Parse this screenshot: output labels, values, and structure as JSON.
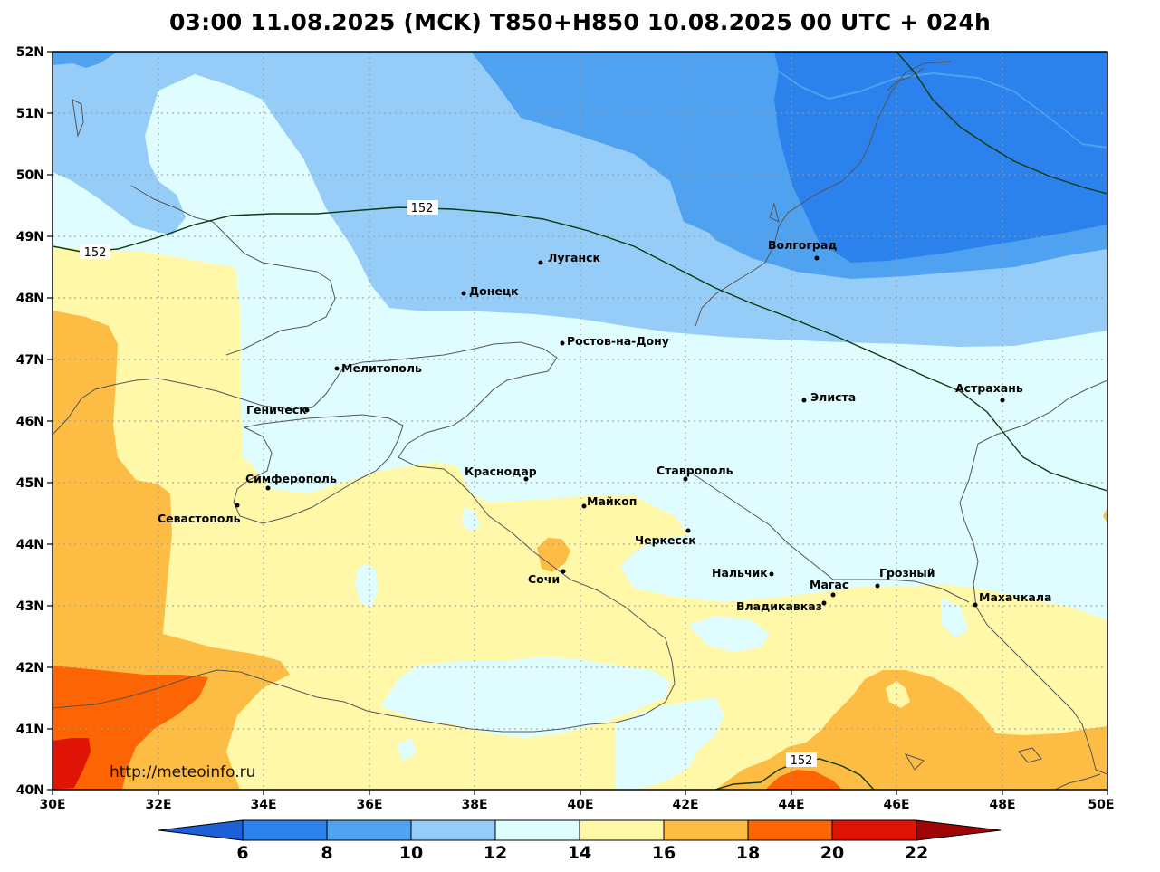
{
  "title": "03:00 11.08.2025 (MCK) T850+H850 10.08.2025 00 UTC + 024h",
  "watermark": "http://meteoinfo.ru",
  "axes": {
    "lat_labels": [
      "52N",
      "51N",
      "50N",
      "49N",
      "48N",
      "47N",
      "46N",
      "45N",
      "44N",
      "43N",
      "42N",
      "41N",
      "40N"
    ],
    "lon_labels": [
      "30E",
      "32E",
      "34E",
      "36E",
      "38E",
      "40E",
      "42E",
      "44E",
      "46E",
      "48E",
      "50E"
    ]
  },
  "contour_labels": [
    "152",
    "152",
    "152"
  ],
  "colorbar": {
    "ticks": [
      "6",
      "8",
      "10",
      "12",
      "14",
      "16",
      "18",
      "20",
      "22"
    ],
    "colors": [
      "#1c5fd6",
      "#2b82ec",
      "#4ea2f0",
      "#96cdf8",
      "#dffdff",
      "#fff8a9",
      "#fdbd45",
      "#fd6404",
      "#e01404",
      "#a00404"
    ]
  },
  "cities": [
    {
      "name": "Волгоград"
    },
    {
      "name": "Луганск"
    },
    {
      "name": "Донецк"
    },
    {
      "name": "Ростов-на-Дону"
    },
    {
      "name": "Мелитополь"
    },
    {
      "name": "Геническ"
    },
    {
      "name": "Элиста"
    },
    {
      "name": "Астрахань"
    },
    {
      "name": "Симферополь"
    },
    {
      "name": "Севастополь"
    },
    {
      "name": "Краснодар"
    },
    {
      "name": "Ставрополь"
    },
    {
      "name": "Майкоп"
    },
    {
      "name": "Черкесск"
    },
    {
      "name": "Нальчик"
    },
    {
      "name": "Сочи"
    },
    {
      "name": "Магас"
    },
    {
      "name": "Грозный"
    },
    {
      "name": "Владикавказ"
    },
    {
      "name": "Махачкала"
    }
  ]
}
